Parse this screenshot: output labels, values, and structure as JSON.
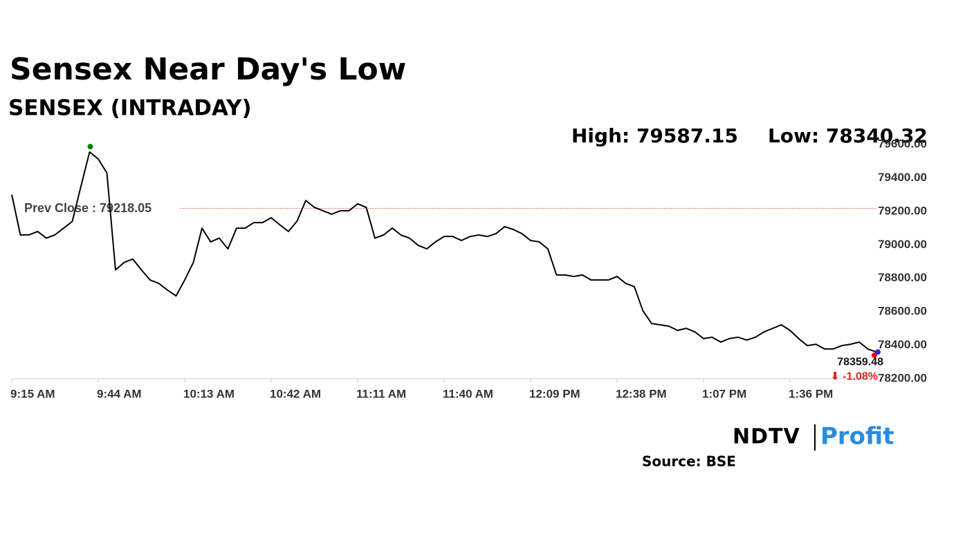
{
  "chart_data": {
    "type": "line",
    "title": "Sensex Near Day's Low",
    "subtitle": "SENSEX (INTRADAY)",
    "high_label": "High: 79587.15",
    "high": 79587.15,
    "low_label": "Low: 78340.32",
    "low": 78340.32,
    "prev_close": {
      "value": 79218.05,
      "label": "Prev Close : 79218.05"
    },
    "last_label": "78359.48",
    "change_label": "⬇ -1.08%",
    "source": "Source: BSE",
    "logo": [
      "NDTV",
      "Profit"
    ],
    "categories": [
      "9:15 AM",
      null,
      null,
      null,
      null,
      null,
      null,
      null,
      null,
      null,
      "9:44 AM",
      null,
      null,
      null,
      null,
      null,
      null,
      null,
      null,
      null,
      "10:13 AM",
      null,
      null,
      null,
      null,
      null,
      null,
      null,
      null,
      null,
      "10:42 AM",
      null,
      null,
      null,
      null,
      null,
      null,
      null,
      null,
      null,
      "11:11 AM",
      null,
      null,
      null,
      null,
      null,
      null,
      null,
      null,
      null,
      "11:40 AM",
      null,
      null,
      null,
      null,
      null,
      null,
      null,
      null,
      null,
      "12:09 PM",
      null,
      null,
      null,
      null,
      null,
      null,
      null,
      null,
      null,
      "12:38 PM",
      null,
      null,
      null,
      null,
      null,
      null,
      null,
      null,
      null,
      "1:07 PM",
      null,
      null,
      null,
      null,
      null,
      null,
      null,
      null,
      null,
      "1:36 PM",
      null,
      null,
      null,
      null,
      null,
      null,
      null,
      null,
      null,
      null
    ],
    "series": [
      {
        "name": "SENSEX",
        "color": "#000000",
        "values": [
          79300,
          79059,
          79060,
          79080,
          79040,
          79060,
          79100,
          79140,
          79350,
          79555,
          79513,
          79430,
          78850,
          78895,
          78915,
          78850,
          78790,
          78770,
          78730,
          78695,
          78790,
          78895,
          79100,
          79018,
          79040,
          78976,
          79100,
          79100,
          79133,
          79133,
          79162,
          79120,
          79080,
          79142,
          79265,
          79224,
          79204,
          79183,
          79204,
          79204,
          79245,
          79224,
          79040,
          79059,
          79100,
          79059,
          79040,
          78997,
          78976,
          79018,
          79050,
          79050,
          79026,
          79050,
          79059,
          79050,
          79067,
          79109,
          79092,
          79067,
          79026,
          79018,
          78976,
          78820,
          78820,
          78811,
          78820,
          78790,
          78790,
          78790,
          78811,
          78770,
          78750,
          78605,
          78530,
          78522,
          78514,
          78489,
          78501,
          78480,
          78440,
          78448,
          78419,
          78440,
          78448,
          78431,
          78448,
          78480,
          78501,
          78522,
          78489,
          78440,
          78398,
          78406,
          78378,
          78378,
          78398,
          78406,
          78419,
          78378,
          78359.48
        ]
      }
    ],
    "ylim": [
      78200,
      79600
    ],
    "yticks": [
      {
        "value": 78200,
        "label": "78200.00"
      },
      {
        "value": 78400,
        "label": "78400.00"
      },
      {
        "value": 78600,
        "label": "78600.00"
      },
      {
        "value": 78800,
        "label": "78800.00"
      },
      {
        "value": 79000,
        "label": "79000.00"
      },
      {
        "value": 79200,
        "label": "79200.00"
      },
      {
        "value": 79400,
        "label": "79400.00"
      },
      {
        "value": 79600,
        "label": "79600.00"
      }
    ]
  }
}
